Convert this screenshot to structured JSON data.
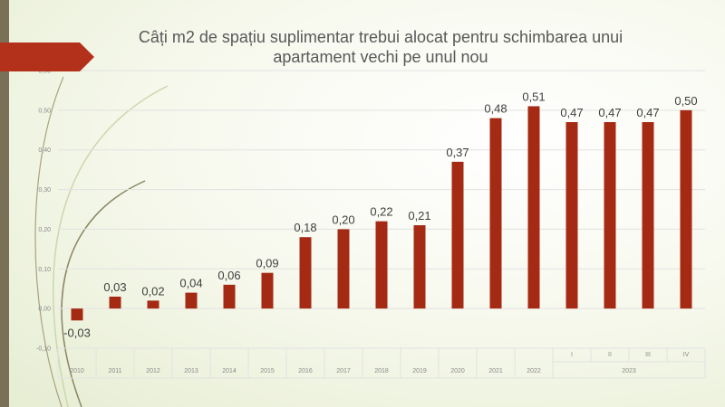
{
  "chart_data": {
    "type": "bar",
    "title_lines": [
      "Câți m2 de spațiu suplimentar trebui alocat pentru schimbarea unui",
      "apartament vechi pe unul nou"
    ],
    "categories": [
      "2010",
      "2011",
      "2012",
      "2013",
      "2014",
      "2015",
      "2016",
      "2017",
      "2018",
      "2019",
      "2020",
      "2021",
      "2022",
      "I",
      "II",
      "III",
      "IV"
    ],
    "group_labels": [
      {
        "label": "2023",
        "from": 13,
        "to": 16
      }
    ],
    "values": [
      -0.03,
      0.03,
      0.02,
      0.04,
      0.06,
      0.09,
      0.18,
      0.2,
      0.22,
      0.21,
      0.37,
      0.48,
      0.51,
      0.47,
      0.47,
      0.47,
      0.5
    ],
    "data_labels": [
      "-0,03",
      "0,03",
      "0,02",
      "0,04",
      "0,06",
      "0,09",
      "0,18",
      "0,20",
      "0,22",
      "0,21",
      "0,37",
      "0,48",
      "0,51",
      "0,47",
      "0,47",
      "0,47",
      "0,50"
    ],
    "y_ticks": [
      -0.1,
      0.0,
      0.1,
      0.2,
      0.3,
      0.4,
      0.5,
      0.6
    ],
    "y_tick_labels": [
      "-0,10",
      "0,00",
      "0,10",
      "0,20",
      "0,30",
      "0,40",
      "0,50",
      "0,60"
    ],
    "ylim": [
      -0.1,
      0.6
    ],
    "grid": true,
    "legend": "none",
    "xlabel": "",
    "ylabel": "",
    "colors": {
      "bar": "#a52a14",
      "accent": "#b3301a",
      "sidebar": "#7a7058",
      "grid": "#e2e2e2"
    }
  }
}
